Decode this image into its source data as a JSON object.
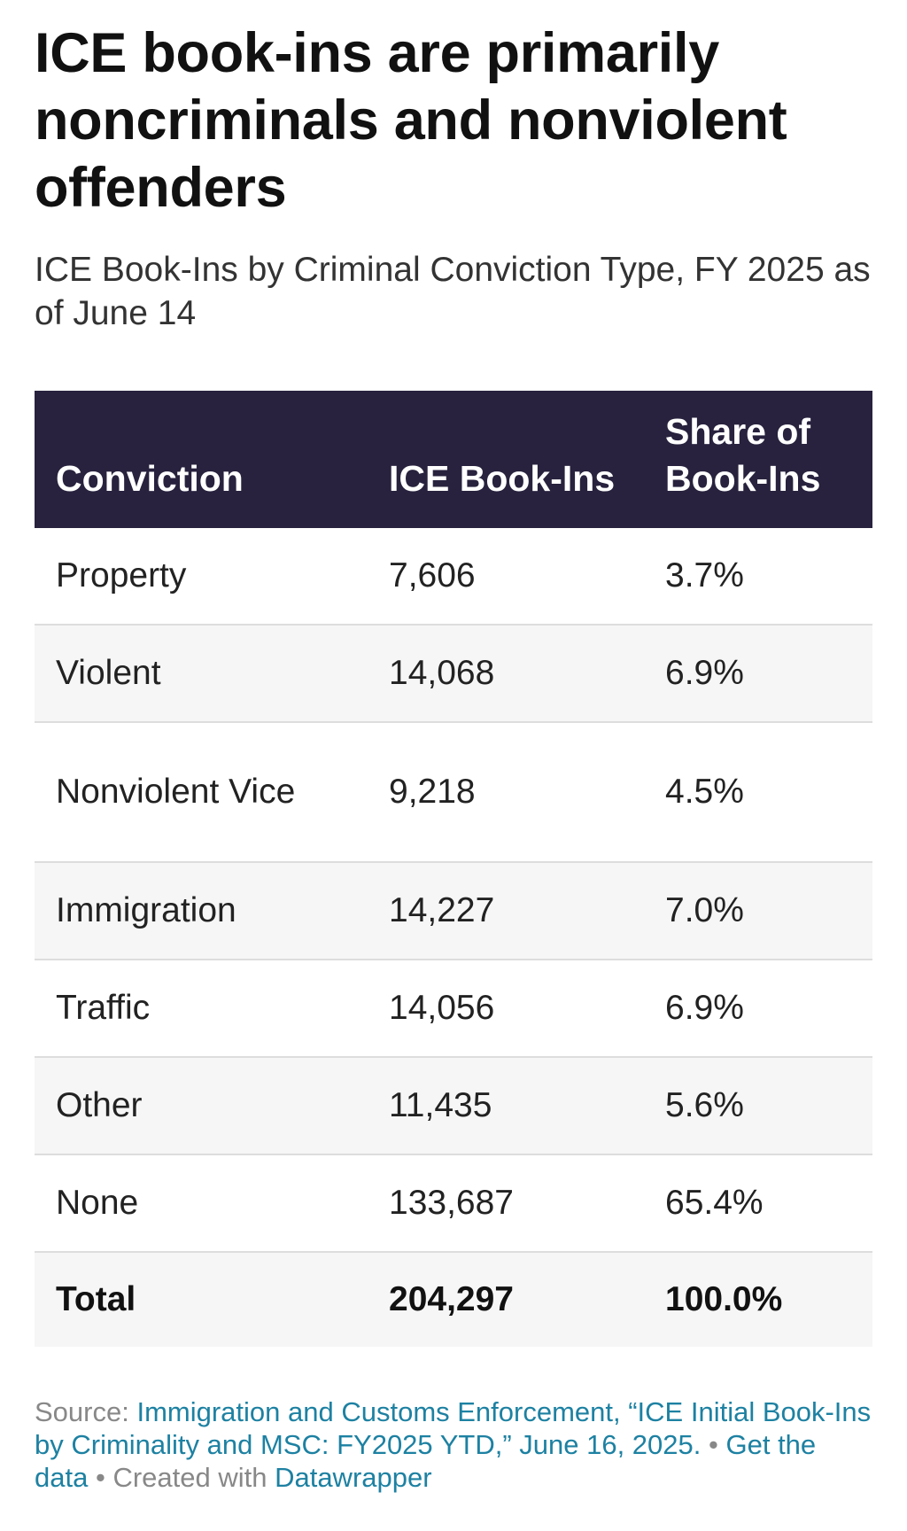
{
  "title": "ICE book-ins are primarily noncriminals and nonviolent offenders",
  "subtitle": "ICE Book-Ins by Criminal Conviction Type, FY 2025 as of June 14",
  "colors": {
    "header_background": "#28223e",
    "header_text": "#ffffff",
    "stripe_background": "#f6f6f6",
    "link": "#1d81a2",
    "footer_text": "#888888"
  },
  "chart_data": {
    "type": "table",
    "columns": [
      "Conviction",
      "ICE Book-Ins",
      "Share of Book-Ins"
    ],
    "rows": [
      [
        "Property",
        "7,606",
        "3.7%"
      ],
      [
        "Violent",
        "14,068",
        "6.9%"
      ],
      [
        "Nonviolent Vice",
        "9,218",
        "4.5%"
      ],
      [
        "Immigration",
        "14,227",
        "7.0%"
      ],
      [
        "Traffic",
        "14,056",
        "6.9%"
      ],
      [
        "Other",
        "11,435",
        "5.6%"
      ],
      [
        "None",
        "133,687",
        "65.4%"
      ]
    ],
    "total": [
      "Total",
      "204,297",
      "100.0%"
    ]
  },
  "footer": {
    "source_label": "Source: ",
    "source_text": "Immigration and Customs Enforcement, “ICE Initial Book-Ins by Criminality and MSC: FY2025 YTD,” June 16, 2025.",
    "separator": " • ",
    "get_data": "Get the data",
    "created_with": "Created with ",
    "datawrapper": "Datawrapper"
  }
}
